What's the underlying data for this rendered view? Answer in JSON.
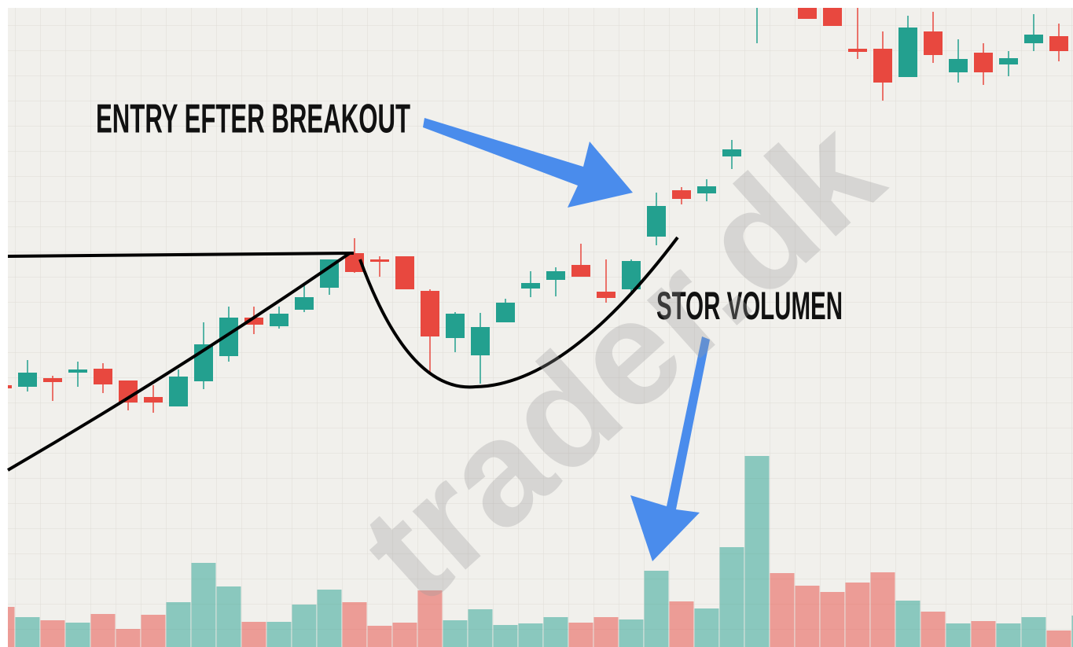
{
  "chart_data": {
    "type": "candlestick",
    "open": [
      333,
      331,
      342,
      349,
      354,
      339,
      318,
      306,
      338,
      370,
      419,
      408,
      429,
      457,
      501,
      493,
      497,
      453,
      393,
      371,
      413,
      456,
      467,
      486,
      452,
      455,
      522,
      581,
      577,
      624,
      821,
      853,
      828,
      823,
      761,
      761,
      725,
      783,
      731,
      756,
      741,
      768,
      777,
      781
    ],
    "high": [
      337,
      365,
      345,
      363,
      361,
      339,
      333,
      353,
      413,
      433,
      433,
      433,
      461,
      493,
      520,
      497,
      497,
      455,
      426,
      425,
      443,
      478,
      483,
      513,
      493,
      493,
      578,
      585,
      595,
      645,
      843,
      863,
      833,
      833,
      813,
      783,
      803,
      808,
      773,
      768,
      758,
      805,
      793,
      783
    ],
    "low": [
      326,
      325,
      313,
      331,
      323,
      301,
      298,
      306,
      328,
      363,
      398,
      405,
      426,
      448,
      476,
      471,
      455,
      348,
      375,
      335,
      413,
      445,
      446,
      471,
      438,
      448,
      511,
      563,
      567,
      608,
      768,
      833,
      799,
      790,
      748,
      695,
      725,
      743,
      718,
      715,
      726,
      758,
      745,
      778
    ],
    "close": [
      329,
      349,
      337,
      353,
      334,
      311,
      311,
      344,
      385,
      419,
      410,
      424,
      445,
      493,
      477,
      490,
      455,
      395,
      424,
      407,
      438,
      463,
      478,
      471,
      444,
      491,
      561,
      570,
      586,
      633,
      828,
      843,
      799,
      790,
      757,
      718,
      788,
      753,
      748,
      731,
      749,
      779,
      758,
      783
    ],
    "volume": [
      51,
      38,
      34,
      31,
      42,
      23,
      41,
      57,
      107,
      77,
      32,
      32,
      54,
      73,
      57,
      27,
      31,
      72,
      34,
      48,
      28,
      30,
      38,
      31,
      38,
      35,
      97,
      58,
      49,
      127,
      243,
      94,
      78,
      70,
      82,
      95,
      59,
      45,
      30,
      33,
      30,
      38,
      21,
      40
    ],
    "ylim": [
      0,
      823
    ],
    "y2lim": [
      0,
      823
    ],
    "up_color": "#23a08f",
    "down_color": "#e8483f",
    "annotations": [
      "ENTRY EFTER BREAKOUT",
      "STOR VOLUMEN"
    ],
    "watermark": "trader.dk"
  }
}
